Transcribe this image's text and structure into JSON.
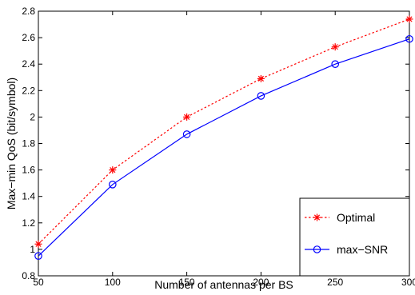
{
  "chart_data": {
    "type": "line",
    "title": "",
    "xlabel": "Number of antennas per BS",
    "ylabel": "Max−min QoS (bit/symbol)",
    "xlim": [
      50,
      300
    ],
    "ylim": [
      0.8,
      2.8
    ],
    "x": [
      50,
      100,
      150,
      200,
      250,
      300
    ],
    "x_ticks": [
      50,
      100,
      150,
      200,
      250,
      300
    ],
    "y_ticks": [
      0.8,
      1,
      1.2,
      1.4,
      1.6,
      1.8,
      2,
      2.2,
      2.4,
      2.6,
      2.8
    ],
    "x_tick_labels": [
      "50",
      "100",
      "150",
      "200",
      "250",
      "300"
    ],
    "y_tick_labels": [
      "0.8",
      "1",
      "1.2",
      "1.4",
      "1.6",
      "1.8",
      "2",
      "2.2",
      "2.4",
      "2.6",
      "2.8"
    ],
    "grid": false,
    "legend_position": "bottom-right",
    "series": [
      {
        "name": "Optimal",
        "values": [
          1.04,
          1.6,
          2.0,
          2.29,
          2.53,
          2.74
        ],
        "color": "#ff0000",
        "line_style": "dotted",
        "marker": "asterisk"
      },
      {
        "name": "max−SNR",
        "values": [
          0.95,
          1.49,
          1.87,
          2.16,
          2.4,
          2.59
        ],
        "color": "#0000ff",
        "line_style": "solid",
        "marker": "circle"
      }
    ]
  }
}
